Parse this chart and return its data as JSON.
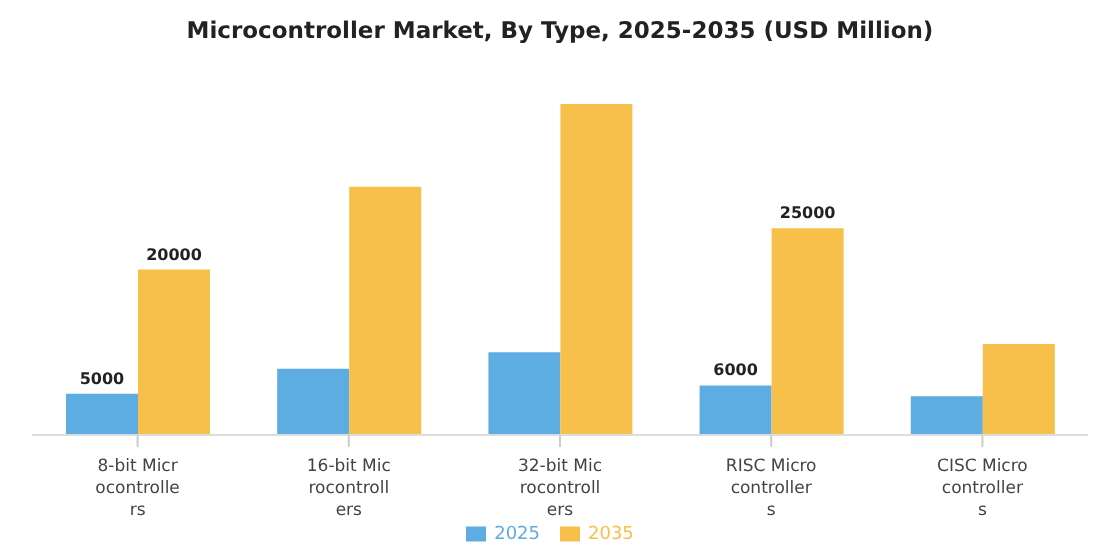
{
  "chart_data": {
    "type": "bar",
    "title": "Microcontroller Market, By Type, 2025-2035 (USD Million)",
    "categories": [
      "8-bit Microcontrollers",
      "16-bit Microcontrollers",
      "32-bit Microcontrollers",
      "RISC Microcontrollers",
      "CISC Microcontrollers"
    ],
    "series": [
      {
        "name": "2025",
        "color": "#5dade2",
        "values": [
          5000,
          8000,
          10000,
          6000,
          4700
        ],
        "value_labels": [
          "5000",
          null,
          null,
          "6000",
          null
        ]
      },
      {
        "name": "2035",
        "color": "#f7c04a",
        "values": [
          20000,
          30000,
          40000,
          25000,
          11000
        ],
        "value_labels": [
          "20000",
          null,
          null,
          "25000",
          null
        ]
      }
    ],
    "legend": "bottom",
    "grid": false
  }
}
